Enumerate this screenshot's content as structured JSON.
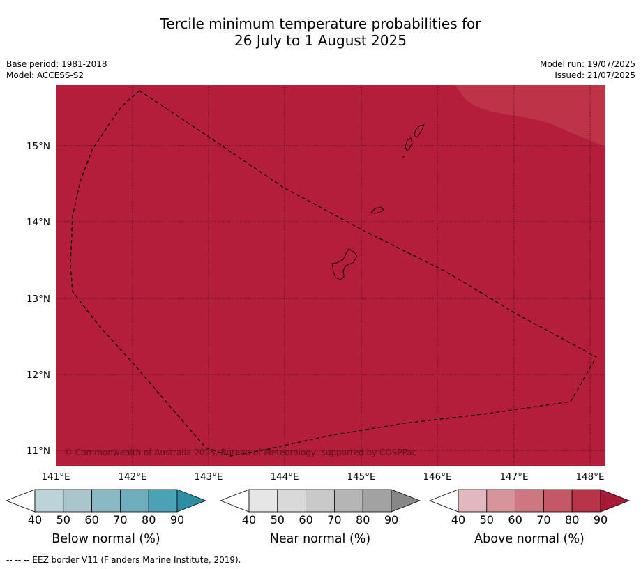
{
  "title": {
    "line1": "Tercile minimum temperature probabilities for",
    "line2": "26 July to 1 August 2025"
  },
  "meta": {
    "base_period": "Base period: 1981-2018",
    "model": "Model: ACCESS-S2",
    "model_run": "Model run: 19/07/2025",
    "issued": "Issued: 21/07/2025"
  },
  "map": {
    "background_color": "#b41e3a",
    "corner_shade_color": "#bd3348",
    "copyright": "© Commonwealth of Australia 2025, Bureau of Meteorology, supported by COSPPac",
    "lon_labels": [
      "141°E",
      "142°E",
      "143°E",
      "144°E",
      "145°E",
      "146°E",
      "147°E",
      "148°E"
    ],
    "lat_labels": [
      "15°N",
      "14°N",
      "13°N",
      "12°N",
      "11°N"
    ]
  },
  "colorbars": [
    {
      "name": "Below normal (%)",
      "ticks": [
        "40",
        "50",
        "60",
        "70",
        "80",
        "90"
      ],
      "colors": [
        "#ffffff",
        "#bcd3da",
        "#a8c6cc",
        "#8ab8c3",
        "#6fafbd",
        "#4aa2b4",
        "#2b8ea5"
      ]
    },
    {
      "name": "Near normal (%)",
      "ticks": [
        "40",
        "50",
        "60",
        "70",
        "80",
        "90"
      ],
      "colors": [
        "#ffffff",
        "#e6e6e6",
        "#d9d9d9",
        "#c9c9c9",
        "#b5b5b5",
        "#a2a2a2",
        "#878787"
      ]
    },
    {
      "name": "Above normal (%)",
      "ticks": [
        "40",
        "50",
        "60",
        "70",
        "80",
        "90"
      ],
      "colors": [
        "#ffffff",
        "#e2b8bd",
        "#d6949b",
        "#cd7880",
        "#c55866",
        "#b93449",
        "#a81936"
      ]
    }
  ],
  "footer": "-- -- -- EEZ border V11 (Flanders Marine Institute, 2019)."
}
